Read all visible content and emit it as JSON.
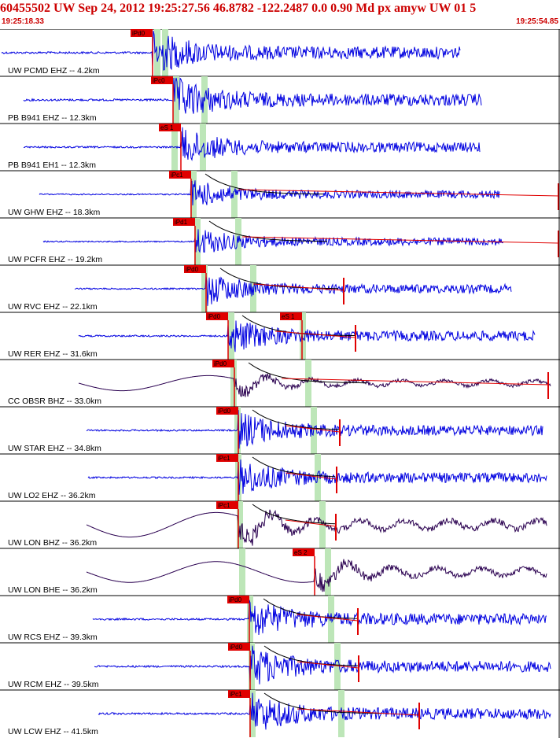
{
  "header": {
    "title": "60455502 UW Sep 24, 2012 19:25:27.56   46.8782 -122.2487  0.0 0.90 Md px amyw UW 01   5",
    "start_time": "19:25:18.33",
    "end_time": "19:25:54.85"
  },
  "colors": {
    "trace": "#0000e0",
    "broadband_trace": "#2a0050",
    "pick_flag": "#e00000",
    "window": "#bde6b8",
    "coda": "#e00000"
  },
  "traces": [
    {
      "label": "UW PCMD EHZ -- 4.2km",
      "pick": "iPd0",
      "type": "short"
    },
    {
      "label": "PB B941 EHZ -- 12.3km",
      "pick": "iPc0",
      "type": "short"
    },
    {
      "label": "PB B941 EH1 -- 12.3km",
      "pick": "eS 1",
      "type": "short"
    },
    {
      "label": "UW GHW EHZ -- 18.3km",
      "pick": "iPc1",
      "type": "short"
    },
    {
      "label": "UW PCFR EHZ -- 19.2km",
      "pick": "iPd1",
      "type": "short"
    },
    {
      "label": "UW RVC EHZ -- 22.1km",
      "pick": "iPd0",
      "type": "short"
    },
    {
      "label": "UW RER EHZ -- 31.6km",
      "pick": "iPd0",
      "pick2": "eS 1",
      "type": "short"
    },
    {
      "label": "CC OBSR BHZ -- 33.0km",
      "pick": "iPd0",
      "type": "broad"
    },
    {
      "label": "UW STAR EHZ -- 34.8km",
      "pick": "iPd0",
      "type": "short"
    },
    {
      "label": "UW LO2 EHZ -- 36.2km",
      "pick": "iPc1",
      "type": "short"
    },
    {
      "label": "UW LON BHZ -- 36.2km",
      "pick": "iPc1",
      "type": "broad"
    },
    {
      "label": "UW LON BHE -- 36.2km",
      "pick": "eS 2",
      "type": "broad"
    },
    {
      "label": "UW RCS EHZ -- 39.3km",
      "pick": "iPd0",
      "type": "short"
    },
    {
      "label": "UW RCM EHZ -- 39.5km",
      "pick": "iPd0",
      "type": "short"
    },
    {
      "label": "UW LCW EHZ -- 41.5km",
      "pick": "iPc1",
      "type": "short"
    }
  ]
}
